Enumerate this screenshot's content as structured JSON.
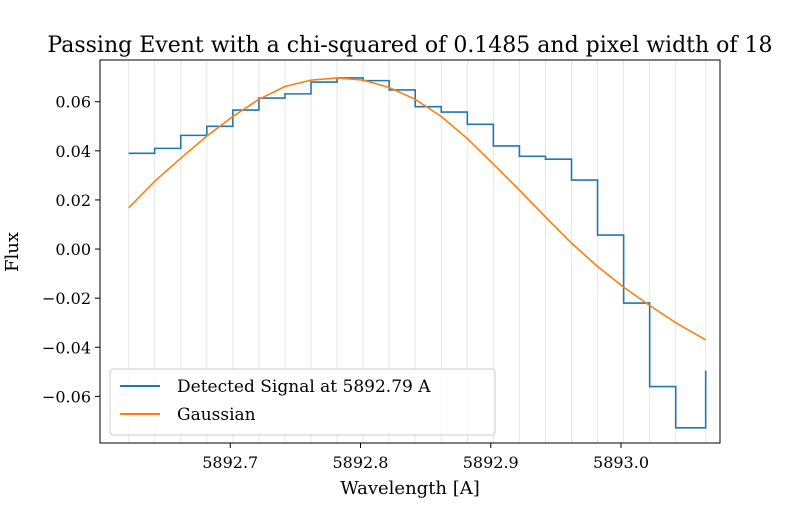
{
  "chart_data": {
    "type": "line",
    "title": "Passing Event with a chi-squared of 0.1485 and pixel width of 18",
    "xlabel": "Wavelength [A]",
    "ylabel": "Flux",
    "xlim": [
      5892.6,
      5893.076
    ],
    "ylim": [
      -0.079,
      0.077
    ],
    "xticks": [
      5892.7,
      5892.8,
      5892.9,
      5893.0
    ],
    "xtick_labels": [
      "5892.7",
      "5892.8",
      "5892.9",
      "5893.0"
    ],
    "yticks": [
      -0.06,
      -0.04,
      -0.02,
      0.0,
      0.02,
      0.04,
      0.06
    ],
    "ytick_labels": [
      "−0.06",
      "−0.04",
      "−0.02",
      "0.00",
      "0.02",
      "0.04",
      "0.06"
    ],
    "grid": "vertical lines at pixel edges",
    "pixel_edges": [
      5892.622,
      5892.642,
      5892.662,
      5892.682,
      5892.702,
      5892.722,
      5892.742,
      5892.762,
      5892.782,
      5892.802,
      5892.822,
      5892.842,
      5892.862,
      5892.882,
      5892.902,
      5892.922,
      5892.942,
      5892.962,
      5892.982,
      5893.002,
      5893.022,
      5893.042,
      5893.065
    ],
    "legend": "lower-left",
    "series": [
      {
        "name": "Detected Signal at 5892.79 A",
        "style": "step",
        "color": "#1f77b4",
        "x": [
          5892.622,
          5892.642,
          5892.662,
          5892.682,
          5892.702,
          5892.722,
          5892.742,
          5892.762,
          5892.782,
          5892.802,
          5892.822,
          5892.842,
          5892.862,
          5892.882,
          5892.902,
          5892.922,
          5892.942,
          5892.962,
          5892.982,
          5893.002,
          5893.022,
          5893.042,
          5893.065
        ],
        "y": [
          0.039,
          0.041,
          0.0463,
          0.05,
          0.0566,
          0.0615,
          0.0632,
          0.068,
          0.0697,
          0.0686,
          0.0648,
          0.058,
          0.0558,
          0.0508,
          0.042,
          0.0378,
          0.0366,
          0.0281,
          0.0057,
          -0.022,
          -0.056,
          -0.0728,
          -0.0495
        ]
      },
      {
        "name": "Gaussian",
        "style": "line",
        "color": "#ff7f0e",
        "x": [
          5892.622,
          5892.642,
          5892.662,
          5892.682,
          5892.702,
          5892.722,
          5892.742,
          5892.762,
          5892.782,
          5892.802,
          5892.822,
          5892.842,
          5892.862,
          5892.882,
          5892.902,
          5892.922,
          5892.942,
          5892.962,
          5892.982,
          5893.002,
          5893.022,
          5893.042,
          5893.065
        ],
        "y": [
          0.0168,
          0.0276,
          0.037,
          0.046,
          0.054,
          0.061,
          0.0662,
          0.0688,
          0.0697,
          0.0688,
          0.0658,
          0.061,
          0.054,
          0.045,
          0.0346,
          0.024,
          0.0131,
          0.0024,
          -0.0071,
          -0.0155,
          -0.023,
          -0.03,
          -0.037
        ]
      }
    ]
  }
}
